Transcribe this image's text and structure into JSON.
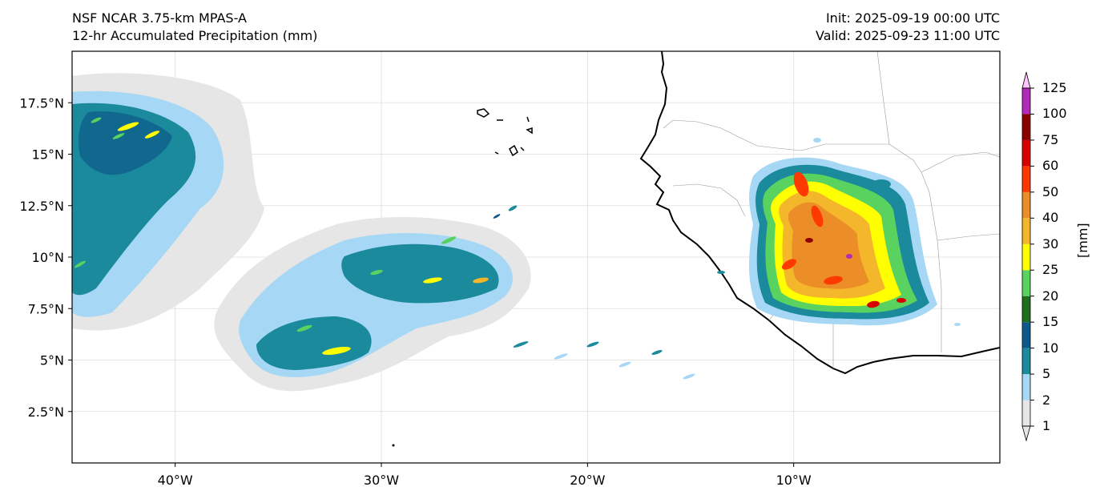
{
  "header": {
    "model_title": "NSF NCAR 3.75-km MPAS-A",
    "field_title": "12-hr Accumulated Precipitation (mm)",
    "init_label": "Init: 2025-09-19 00:00 UTC",
    "valid_label": "Valid: 2025-09-23 11:00 UTC"
  },
  "map": {
    "lon_range": [
      -45,
      0
    ],
    "lat_range": [
      0,
      20
    ],
    "lon_ticks": [
      {
        "value": -40,
        "label": "40°W"
      },
      {
        "value": -30,
        "label": "30°W"
      },
      {
        "value": -20,
        "label": "20°W"
      },
      {
        "value": -10,
        "label": "10°W"
      }
    ],
    "lat_ticks": [
      {
        "value": 17.5,
        "label": "17.5°N"
      },
      {
        "value": 15,
        "label": "15°N"
      },
      {
        "value": 12.5,
        "label": "12.5°N"
      },
      {
        "value": 10,
        "label": "10°N"
      },
      {
        "value": 7.5,
        "label": "7.5°N"
      },
      {
        "value": 5,
        "label": "5°N"
      },
      {
        "value": 2.5,
        "label": "2.5°N"
      }
    ]
  },
  "colorbar": {
    "units": "[mm]",
    "levels": [
      "1",
      "2",
      "5",
      "10",
      "15",
      "20",
      "25",
      "30",
      "40",
      "50",
      "60",
      "75",
      "100",
      "125"
    ],
    "colors": [
      "#e6e6e6",
      "#a6d8f5",
      "#1a8a9c",
      "#0d5a8a",
      "#1e6e1e",
      "#5ad260",
      "#ffff00",
      "#f4b62a",
      "#ec8e28",
      "#ff3a00",
      "#d90000",
      "#8c0000",
      "#b22ab8",
      "#ffc4ff"
    ]
  }
}
